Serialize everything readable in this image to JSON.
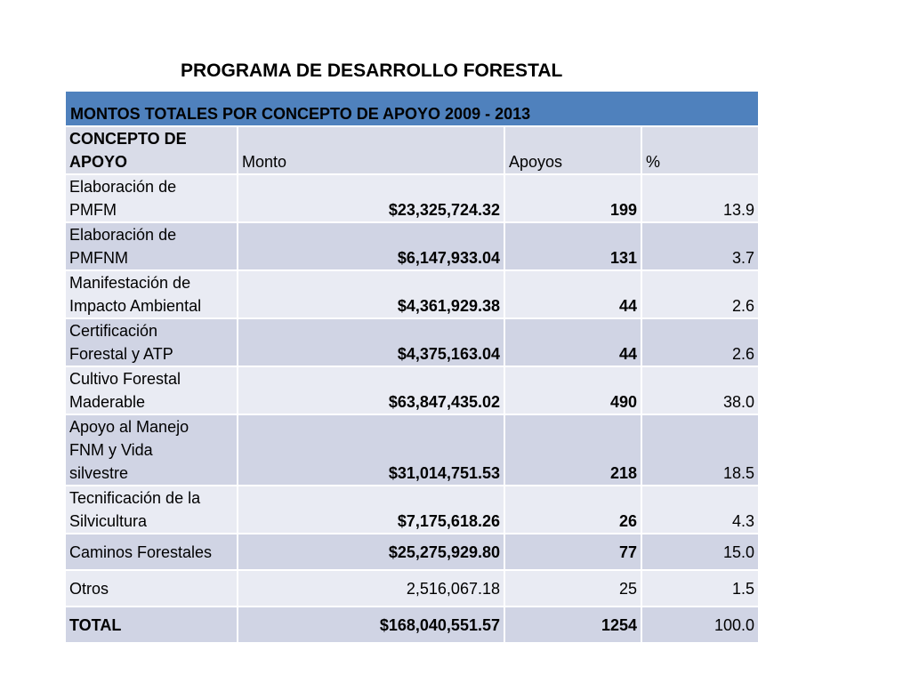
{
  "title": "PROGRAMA DE DESARROLLO FORESTAL",
  "table": {
    "banner": "MONTOS TOTALES POR CONCEPTO DE APOYO 2009 - 2013",
    "headers": {
      "concept_line1": "CONCEPTO DE",
      "concept_line2": "APOYO",
      "amount": "Monto",
      "supports": "Apoyos",
      "percent": "%"
    },
    "rows": [
      {
        "concept_line1": "Elaboración de",
        "concept_line2": "PMFM",
        "amount": "$23,325,724.32",
        "supports": "199",
        "percent": "13.9"
      },
      {
        "concept_line1": "Elaboración de",
        "concept_line2": "PMFNM",
        "amount": "$6,147,933.04",
        "supports": "131",
        "percent": "3.7"
      },
      {
        "concept_line1": "Manifestación de",
        "concept_line2": "Impacto Ambiental",
        "amount": "$4,361,929.38",
        "supports": "44",
        "percent": "2.6"
      },
      {
        "concept_line1": "Certificación",
        "concept_line2": "Forestal y ATP",
        "amount": "$4,375,163.04",
        "supports": "44",
        "percent": "2.6"
      },
      {
        "concept_line1": "Cultivo Forestal",
        "concept_line2": "Maderable",
        "amount": "$63,847,435.02",
        "supports": "490",
        "percent": "38.0"
      },
      {
        "concept_line1": "Apoyo al Manejo",
        "concept_line2": "FNM y Vida",
        "concept_line3": "silvestre",
        "amount": "$31,014,751.53",
        "supports": "218",
        "percent": "18.5"
      },
      {
        "concept_line1": "Tecnificación de la",
        "concept_line2": "Silvicultura",
        "amount": "$7,175,618.26",
        "supports": "26",
        "percent": "4.3"
      },
      {
        "concept_line1": "Caminos Forestales",
        "amount": "$25,275,929.80",
        "supports": "77",
        "percent": "15.0"
      },
      {
        "concept_line1": "Otros",
        "amount": "2,516,067.18",
        "supports": "25",
        "percent": "1.5"
      }
    ],
    "total": {
      "label": "TOTAL",
      "amount": "$168,040,551.57",
      "supports": "1254",
      "percent": "100.0"
    }
  }
}
